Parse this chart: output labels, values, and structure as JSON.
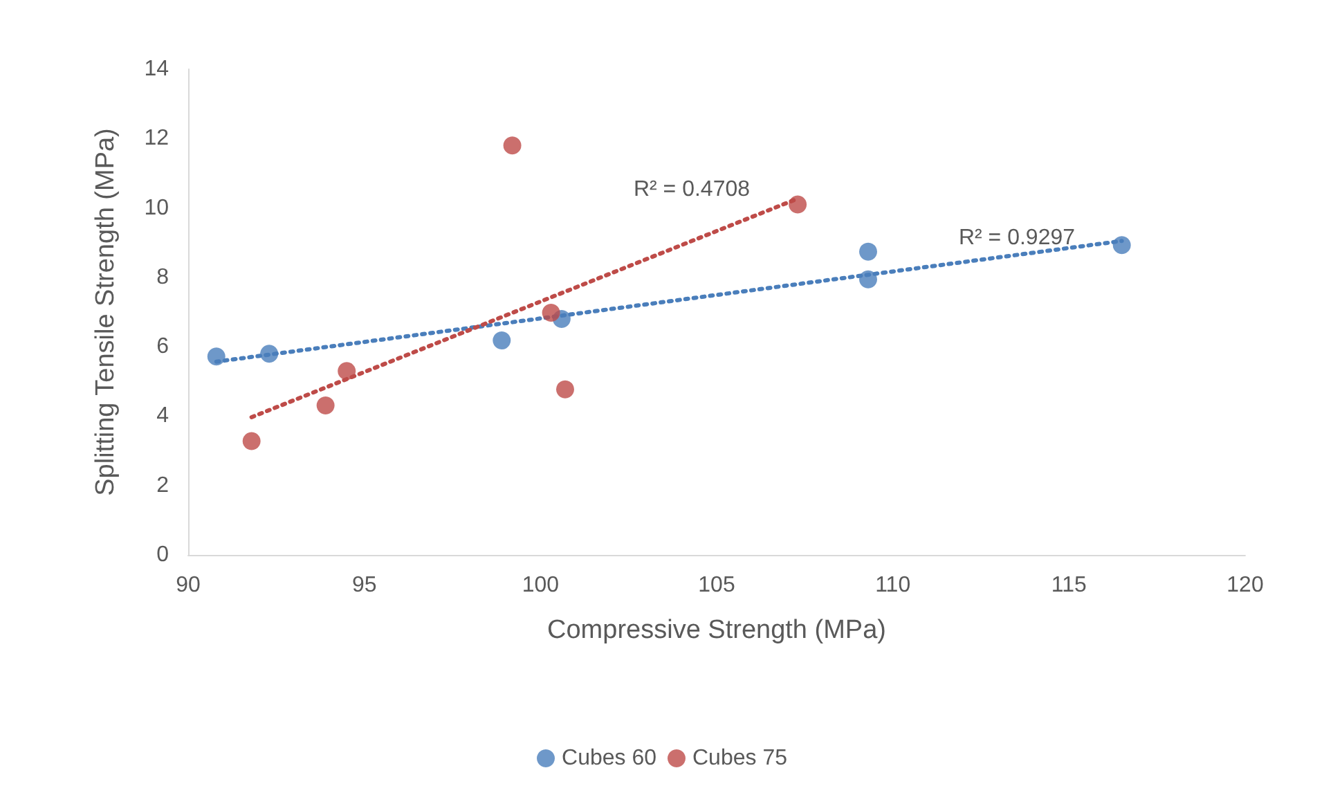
{
  "chart_data": {
    "type": "scatter",
    "xlabel": "Compressive Strength (MPa)",
    "ylabel": "Splitting Tensile Strength (MPa)",
    "xlim": [
      90,
      120
    ],
    "xticks": [
      90,
      95,
      100,
      105,
      110,
      115,
      120
    ],
    "ylim": [
      0,
      14
    ],
    "yticks": [
      0,
      2,
      4,
      6,
      8,
      10,
      12,
      14
    ],
    "grid": false,
    "legend": "bottom",
    "marker": "circle",
    "series": [
      {
        "name": "Cubes 60",
        "color": "#4a7ebb",
        "x": [
          90.8,
          92.3,
          98.9,
          100.6,
          109.3,
          109.3,
          116.5
        ],
        "values": [
          5.72,
          5.8,
          6.18,
          6.8,
          8.74,
          7.94,
          8.93
        ]
      },
      {
        "name": "Cubes 75",
        "color": "#be4b48",
        "x": [
          91.8,
          93.9,
          94.5,
          99.2,
          100.3,
          100.7,
          107.3
        ],
        "values": [
          3.28,
          4.31,
          5.3,
          11.8,
          6.98,
          4.77,
          10.1
        ]
      },
      {
        "type": "line",
        "color": "#4a7ebb",
        "line_style": "dotted",
        "marker": "none",
        "x": [
          90.8,
          116.5
        ],
        "values": [
          5.57,
          9.05
        ]
      },
      {
        "type": "line",
        "color": "#be4b48",
        "line_style": "dotted",
        "marker": "none",
        "x": [
          91.8,
          107.3
        ],
        "values": [
          3.97,
          10.27
        ]
      }
    ],
    "annotations": [
      "R² = 0.4708",
      "R² = 0.9297"
    ]
  }
}
